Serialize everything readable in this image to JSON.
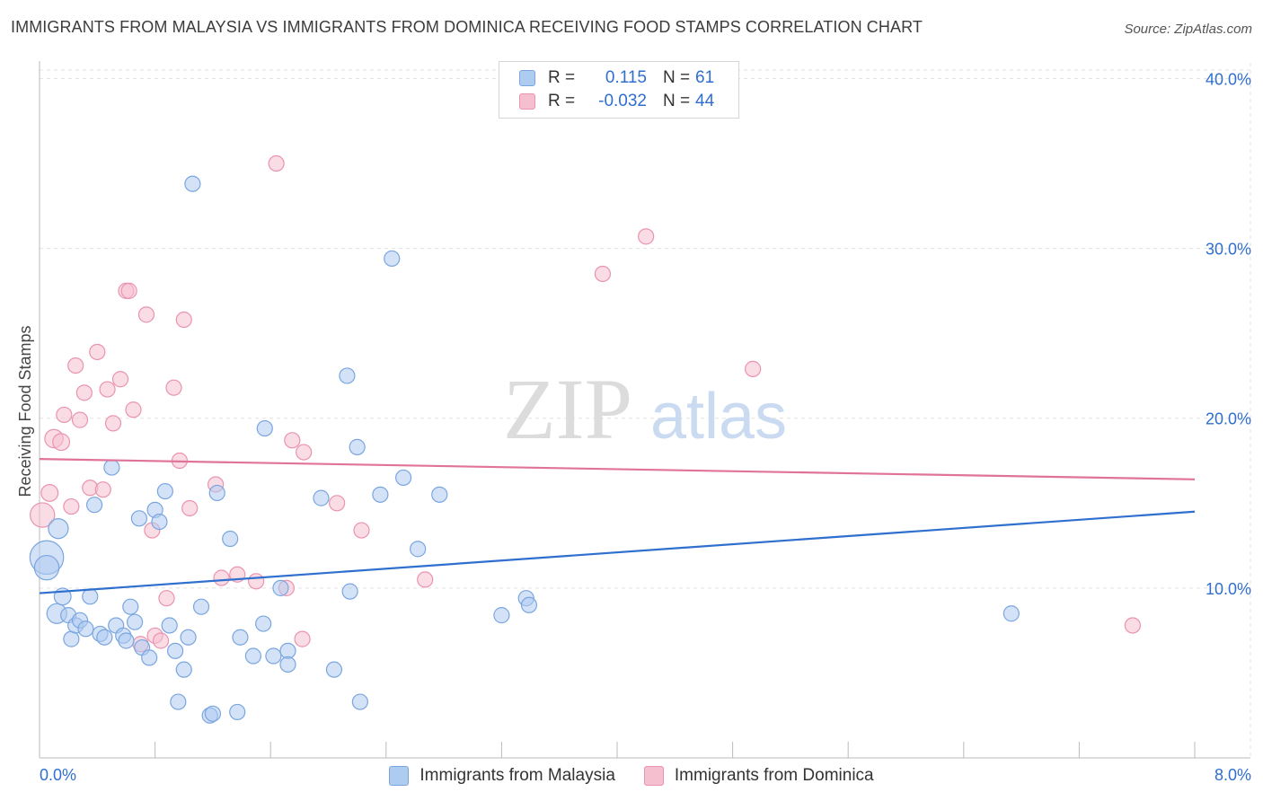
{
  "title": "IMMIGRANTS FROM MALAYSIA VS IMMIGRANTS FROM DOMINICA RECEIVING FOOD STAMPS CORRELATION CHART",
  "source": "Source: ZipAtlas.com",
  "watermark": {
    "zip": "ZIP",
    "atlas": "atlas"
  },
  "colors": {
    "blue_fill": "#aecbf0",
    "blue_stroke": "#7aa6e0",
    "blue_line": "#2f6fce",
    "pink_fill": "#f6bfd0",
    "pink_stroke": "#ea93b0",
    "pink_line": "#e0739a",
    "value_text": "#2f6fce",
    "grid": "#e3e3e3"
  },
  "legend": [
    {
      "series": "Immigrants from Malaysia",
      "r_label": "R =",
      "r_value": "0.115",
      "n_label": "N =",
      "n_value": "61"
    },
    {
      "series": "Immigrants from Dominica",
      "r_label": "R =",
      "r_value": "-0.032",
      "n_label": "N =",
      "n_value": "44"
    }
  ],
  "chart_data": {
    "type": "scatter",
    "title": "IMMIGRANTS FROM MALAYSIA VS IMMIGRANTS FROM DOMINICA RECEIVING FOOD STAMPS CORRELATION CHART",
    "xlabel": "",
    "ylabel": "Receiving Food Stamps",
    "xlim": [
      0,
      8
    ],
    "ylim": [
      0,
      40.5
    ],
    "x_tick_labels": [
      "0.0%",
      "8.0%"
    ],
    "y_ticks": [
      10,
      20,
      30,
      40
    ],
    "y_tick_labels": [
      "10.0%",
      "20.0%",
      "30.0%",
      "40.0%"
    ],
    "grid": true,
    "legend_position": "top-center",
    "series": [
      {
        "name": "Immigrants from Malaysia",
        "color": "blue",
        "trend": {
          "x0": 0.0,
          "y0": 9.7,
          "x1": 8.0,
          "y1": 14.5
        },
        "points": [
          [
            0.05,
            11.8,
            2.2
          ],
          [
            0.05,
            11.2,
            1.6
          ],
          [
            0.12,
            8.5,
            1.3
          ],
          [
            0.13,
            13.5,
            1.3
          ],
          [
            0.16,
            9.5,
            1.1
          ],
          [
            0.2,
            8.4,
            1
          ],
          [
            0.22,
            7.0,
            1
          ],
          [
            0.25,
            7.8,
            1
          ],
          [
            0.28,
            8.1,
            1
          ],
          [
            0.32,
            7.6,
            1
          ],
          [
            0.35,
            9.5,
            1
          ],
          [
            0.38,
            14.9,
            1
          ],
          [
            0.42,
            7.3,
            1
          ],
          [
            0.45,
            7.1,
            1
          ],
          [
            0.5,
            17.1,
            1
          ],
          [
            0.53,
            7.8,
            1
          ],
          [
            0.58,
            7.2,
            1
          ],
          [
            0.6,
            6.9,
            1
          ],
          [
            0.63,
            8.9,
            1
          ],
          [
            0.66,
            8.0,
            1
          ],
          [
            0.69,
            14.1,
            1
          ],
          [
            0.71,
            6.5,
            1
          ],
          [
            0.76,
            5.9,
            1
          ],
          [
            0.8,
            14.6,
            1
          ],
          [
            0.83,
            13.9,
            1
          ],
          [
            0.87,
            15.7,
            1
          ],
          [
            0.9,
            7.8,
            1
          ],
          [
            0.94,
            6.3,
            1
          ],
          [
            0.96,
            3.3,
            1
          ],
          [
            1.0,
            5.2,
            1
          ],
          [
            1.03,
            7.1,
            1
          ],
          [
            1.06,
            33.8,
            1
          ],
          [
            1.12,
            8.9,
            1
          ],
          [
            1.18,
            2.5,
            1
          ],
          [
            1.2,
            2.6,
            1
          ],
          [
            1.23,
            15.6,
            1
          ],
          [
            1.32,
            12.9,
            1
          ],
          [
            1.37,
            2.7,
            1
          ],
          [
            1.39,
            7.1,
            1
          ],
          [
            1.48,
            6.0,
            1
          ],
          [
            1.55,
            7.9,
            1
          ],
          [
            1.56,
            19.4,
            1
          ],
          [
            1.62,
            6.0,
            1
          ],
          [
            1.67,
            10.0,
            1
          ],
          [
            1.72,
            6.3,
            1
          ],
          [
            1.72,
            5.5,
            1
          ],
          [
            1.95,
            15.3,
            1
          ],
          [
            2.04,
            5.2,
            1
          ],
          [
            2.13,
            22.5,
            1
          ],
          [
            2.15,
            9.8,
            1
          ],
          [
            2.2,
            18.3,
            1
          ],
          [
            2.22,
            3.3,
            1
          ],
          [
            2.36,
            15.5,
            1
          ],
          [
            2.44,
            29.4,
            1
          ],
          [
            2.52,
            16.5,
            1
          ],
          [
            2.62,
            12.3,
            1
          ],
          [
            2.77,
            15.5,
            1
          ],
          [
            3.2,
            8.4,
            1
          ],
          [
            3.37,
            9.4,
            1
          ],
          [
            3.39,
            9.0,
            1
          ],
          [
            6.73,
            8.5,
            1
          ]
        ]
      },
      {
        "name": "Immigrants from Dominica",
        "color": "pink",
        "trend": {
          "x0": 0.0,
          "y0": 17.6,
          "x1": 8.0,
          "y1": 16.4
        },
        "points": [
          [
            0.02,
            14.3,
            1.6
          ],
          [
            0.07,
            15.6,
            1.1
          ],
          [
            0.1,
            18.8,
            1.2
          ],
          [
            0.15,
            18.6,
            1.1
          ],
          [
            0.17,
            20.2,
            1
          ],
          [
            0.22,
            14.8,
            1
          ],
          [
            0.25,
            23.1,
            1
          ],
          [
            0.28,
            19.9,
            1
          ],
          [
            0.31,
            21.5,
            1
          ],
          [
            0.35,
            15.9,
            1
          ],
          [
            0.4,
            23.9,
            1
          ],
          [
            0.44,
            15.8,
            1
          ],
          [
            0.47,
            21.7,
            1
          ],
          [
            0.51,
            19.7,
            1
          ],
          [
            0.56,
            22.3,
            1
          ],
          [
            0.6,
            27.5,
            1
          ],
          [
            0.62,
            27.5,
            1
          ],
          [
            0.65,
            20.5,
            1
          ],
          [
            0.7,
            6.7,
            1
          ],
          [
            0.74,
            26.1,
            1
          ],
          [
            0.78,
            13.4,
            1
          ],
          [
            0.8,
            7.2,
            1
          ],
          [
            0.84,
            6.9,
            1
          ],
          [
            0.88,
            9.4,
            1
          ],
          [
            0.93,
            21.8,
            1
          ],
          [
            0.97,
            17.5,
            1
          ],
          [
            1.0,
            25.8,
            1
          ],
          [
            1.04,
            14.7,
            1
          ],
          [
            1.22,
            16.1,
            1
          ],
          [
            1.26,
            10.6,
            1
          ],
          [
            1.37,
            10.8,
            1
          ],
          [
            1.5,
            10.4,
            1
          ],
          [
            1.64,
            35.0,
            1
          ],
          [
            1.71,
            10.0,
            1
          ],
          [
            1.75,
            18.7,
            1
          ],
          [
            1.82,
            7.0,
            1
          ],
          [
            1.83,
            18.0,
            1
          ],
          [
            2.06,
            15.0,
            1
          ],
          [
            2.23,
            13.4,
            1
          ],
          [
            2.67,
            10.5,
            1
          ],
          [
            3.9,
            28.5,
            1
          ],
          [
            4.2,
            30.7,
            1
          ],
          [
            4.94,
            22.9,
            1
          ],
          [
            7.57,
            7.8,
            1
          ]
        ]
      }
    ]
  }
}
